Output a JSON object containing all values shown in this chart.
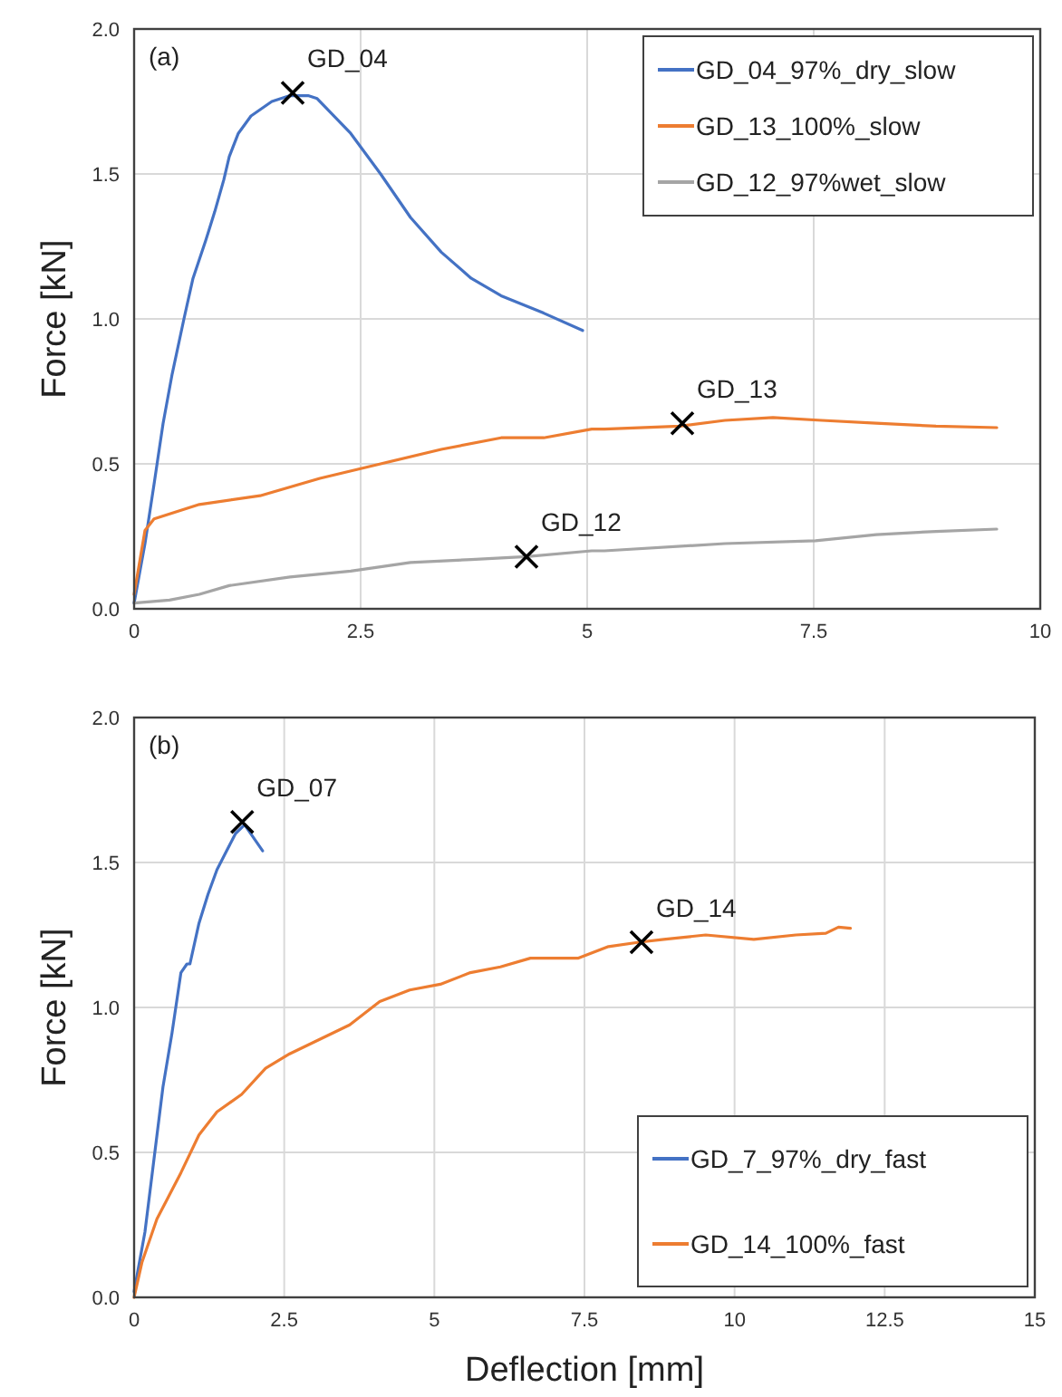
{
  "chart_data": [
    {
      "type": "line",
      "ylabel": "Force [kN]",
      "xlim": [
        0,
        10
      ],
      "xticks": [
        0,
        2.5,
        5,
        7.5,
        10
      ],
      "ylim": [
        0,
        2
      ],
      "yticks": [
        {
          "value": 0,
          "label": "0.0"
        },
        {
          "value": 0.5,
          "label": "0.5"
        },
        {
          "value": 1,
          "label": "1.0"
        },
        {
          "value": 1.5,
          "label": "1.5"
        },
        {
          "value": 2,
          "label": "2.0"
        }
      ],
      "grid": true,
      "legend": "top right",
      "marker": "none",
      "line_style": "solid",
      "annotations": [
        "(a)",
        {
          "text": "GD_04",
          "x": 1.75,
          "y": 1.78
        },
        {
          "text": "GD_13",
          "x": 6.05,
          "y": 0.64
        },
        {
          "text": "GD_12",
          "x": 4.33,
          "y": 0.18
        }
      ],
      "series": [
        {
          "name": "GD_04_97%_dry_slow",
          "color": "#4472c4",
          "x": [
            0,
            0.12,
            0.22,
            0.32,
            0.42,
            0.55,
            0.65,
            0.79,
            0.89,
            0.99,
            1.05,
            1.15,
            1.29,
            1.52,
            1.72,
            1.92,
            2.02,
            2.39,
            2.72,
            3.05,
            3.39,
            3.72,
            4.05,
            4.52,
            4.95
          ],
          "values": [
            0.02,
            0.225,
            0.43,
            0.64,
            0.81,
            1.0,
            1.14,
            1.27,
            1.37,
            1.48,
            1.56,
            1.64,
            1.7,
            1.75,
            1.77,
            1.77,
            1.76,
            1.64,
            1.5,
            1.35,
            1.23,
            1.14,
            1.08,
            1.02,
            0.96
          ]
        },
        {
          "name": "GD_13_100%_slow",
          "color": "#ed7d31",
          "x": [
            0,
            0.12,
            0.22,
            0.72,
            1.39,
            2.05,
            2.72,
            3.39,
            4.05,
            4.52,
            5.05,
            5.19,
            6.02,
            6.52,
            7.05,
            7.59,
            8.19,
            8.85,
            9.52
          ],
          "values": [
            0.05,
            0.27,
            0.31,
            0.36,
            0.39,
            0.45,
            0.5,
            0.55,
            0.59,
            0.59,
            0.62,
            0.62,
            0.63,
            0.65,
            0.66,
            0.65,
            0.64,
            0.63,
            0.625
          ]
        },
        {
          "name": "GD_12_97%wet_slow",
          "color": "#a5a5a5",
          "x": [
            0,
            0.39,
            0.72,
            1.05,
            1.72,
            2.39,
            3.05,
            3.72,
            4.33,
            5.05,
            5.19,
            6.52,
            7.52,
            8.19,
            8.85,
            9.52
          ],
          "values": [
            0.02,
            0.03,
            0.05,
            0.08,
            0.11,
            0.13,
            0.16,
            0.17,
            0.18,
            0.2,
            0.2,
            0.225,
            0.235,
            0.256,
            0.267,
            0.275
          ]
        },
        {
          "type": "scatter",
          "marker": "cross",
          "color": "#000000",
          "x": [
            1.75,
            6.05,
            4.33
          ],
          "values": [
            1.78,
            0.64,
            0.18
          ]
        }
      ]
    },
    {
      "type": "line",
      "xlabel": "Deflection [mm]",
      "ylabel": "Force [kN]",
      "xlim": [
        0,
        15
      ],
      "xticks": [
        0,
        2.5,
        5,
        7.5,
        10,
        12.5,
        15
      ],
      "ylim": [
        0,
        2
      ],
      "yticks": [
        {
          "value": 0,
          "label": "0.0"
        },
        {
          "value": 0.5,
          "label": "0.5"
        },
        {
          "value": 1,
          "label": "1.0"
        },
        {
          "value": 1.5,
          "label": "1.5"
        },
        {
          "value": 2,
          "label": "2.0"
        }
      ],
      "grid": true,
      "legend": "bottom right",
      "marker": "none",
      "line_style": "solid",
      "annotations": [
        "(b)",
        {
          "text": "GD_07",
          "x": 1.8,
          "y": 1.64
        },
        {
          "text": "GD_14",
          "x": 8.45,
          "y": 1.225
        }
      ],
      "series": [
        {
          "name": "GD_7_97%_dry_fast",
          "color": "#4472c4",
          "x": [
            0,
            0.18,
            0.33,
            0.48,
            0.63,
            0.78,
            0.88,
            0.93,
            1.08,
            1.23,
            1.38,
            1.54,
            1.69,
            1.84,
            2.14
          ],
          "values": [
            0.02,
            0.225,
            0.475,
            0.725,
            0.91,
            1.12,
            1.15,
            1.15,
            1.29,
            1.39,
            1.475,
            1.54,
            1.6,
            1.63,
            1.54
          ]
        },
        {
          "name": "GD_14_100%_fast",
          "color": "#ed7d31",
          "x": [
            0,
            0.13,
            0.38,
            0.58,
            0.78,
            1.08,
            1.38,
            1.79,
            2.19,
            2.59,
            3.09,
            3.59,
            4.09,
            4.59,
            5.1,
            5.6,
            6.1,
            6.6,
            7.4,
            7.9,
            8.41,
            8.82,
            9.52,
            10.32,
            11.02,
            11.52,
            11.73,
            11.93
          ],
          "values": [
            0,
            0.12,
            0.27,
            0.35,
            0.43,
            0.56,
            0.64,
            0.7,
            0.79,
            0.84,
            0.89,
            0.94,
            1.02,
            1.06,
            1.08,
            1.12,
            1.14,
            1.17,
            1.17,
            1.21,
            1.225,
            1.235,
            1.25,
            1.235,
            1.25,
            1.256,
            1.277,
            1.273
          ]
        },
        {
          "type": "scatter",
          "marker": "cross",
          "color": "#000000",
          "x": [
            1.8,
            8.45
          ],
          "values": [
            1.64,
            1.225
          ]
        }
      ]
    }
  ]
}
